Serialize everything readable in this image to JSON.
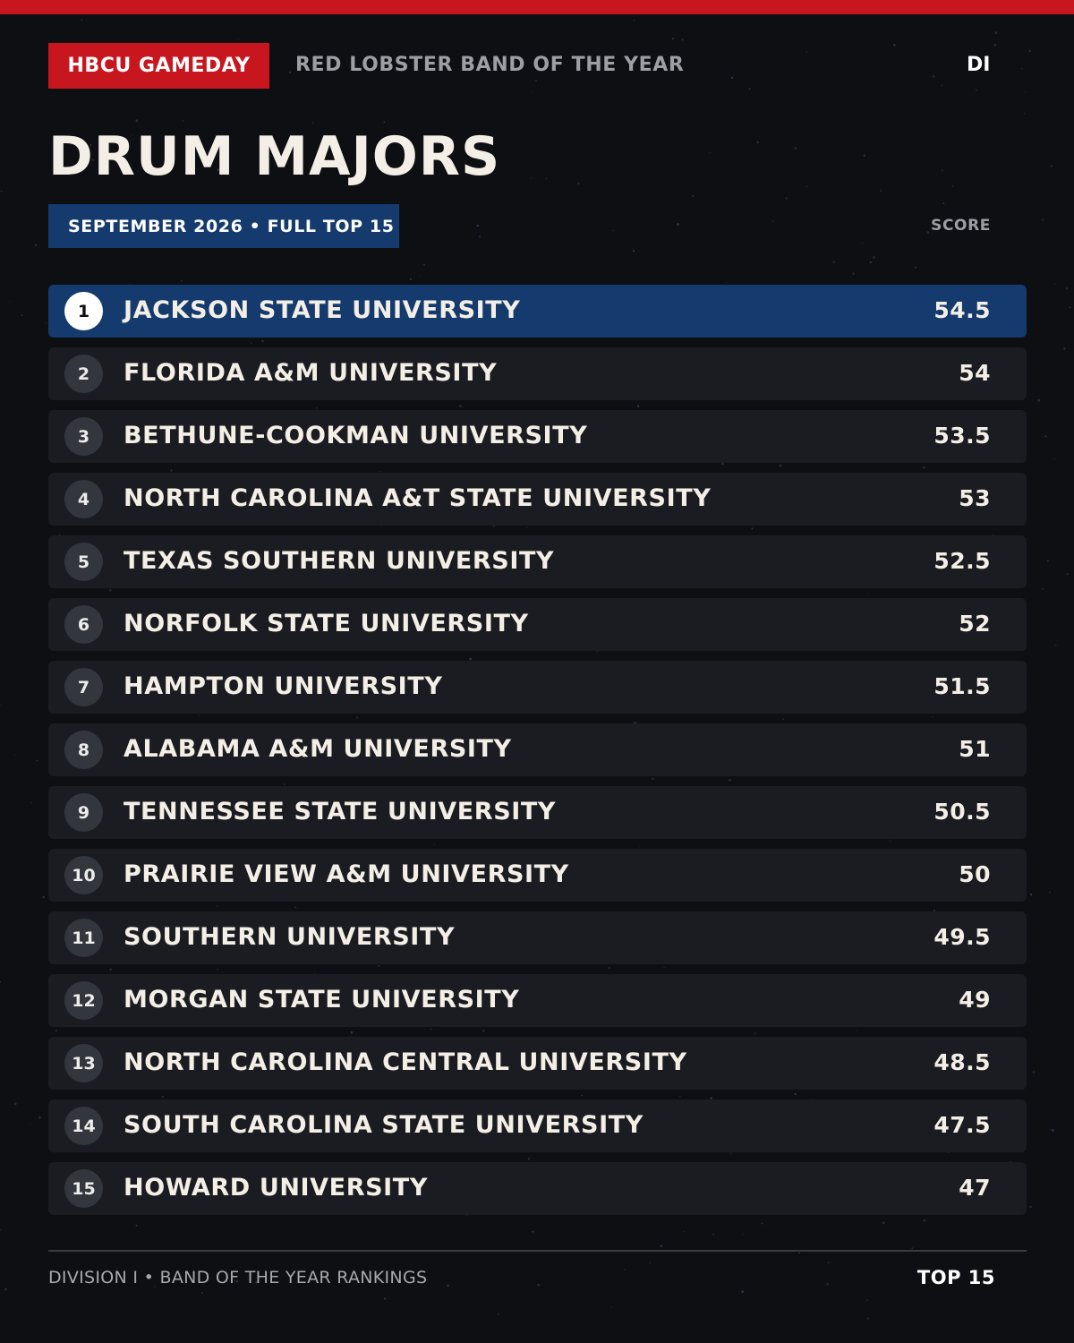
{
  "header": {
    "brand": "HBCU GAMEDAY",
    "event": "RED LOBSTER BAND OF THE YEAR",
    "division": "DI"
  },
  "title": "DRUM MAJORS",
  "subtitle": "SEPTEMBER 2026 • FULL TOP 15",
  "score_header": "SCORE",
  "rankings": [
    {
      "rank": "1",
      "school": "JACKSON STATE UNIVERSITY",
      "score": "54.5"
    },
    {
      "rank": "2",
      "school": "FLORIDA A&M UNIVERSITY",
      "score": "54"
    },
    {
      "rank": "3",
      "school": "BETHUNE-COOKMAN UNIVERSITY",
      "score": "53.5"
    },
    {
      "rank": "4",
      "school": "NORTH CAROLINA A&T STATE UNIVERSITY",
      "score": "53"
    },
    {
      "rank": "5",
      "school": "TEXAS SOUTHERN UNIVERSITY",
      "score": "52.5"
    },
    {
      "rank": "6",
      "school": "NORFOLK STATE UNIVERSITY",
      "score": "52"
    },
    {
      "rank": "7",
      "school": "HAMPTON UNIVERSITY",
      "score": "51.5"
    },
    {
      "rank": "8",
      "school": "ALABAMA A&M UNIVERSITY",
      "score": "51"
    },
    {
      "rank": "9",
      "school": "TENNESSEE STATE UNIVERSITY",
      "score": "50.5"
    },
    {
      "rank": "10",
      "school": "PRAIRIE VIEW A&M UNIVERSITY",
      "score": "50"
    },
    {
      "rank": "11",
      "school": "SOUTHERN UNIVERSITY",
      "score": "49.5"
    },
    {
      "rank": "12",
      "school": "MORGAN STATE UNIVERSITY",
      "score": "49"
    },
    {
      "rank": "13",
      "school": "NORTH CAROLINA CENTRAL UNIVERSITY",
      "score": "48.5"
    },
    {
      "rank": "14",
      "school": "SOUTH CAROLINA STATE UNIVERSITY",
      "score": "47.5"
    },
    {
      "rank": "15",
      "school": "HOWARD UNIVERSITY",
      "score": "47"
    }
  ],
  "footer": {
    "left": "DIVISION I • BAND OF THE YEAR RANKINGS",
    "right": "TOP 15"
  },
  "colors": {
    "accent_red": "#c8161f",
    "accent_blue": "#143a6e",
    "background": "#0e0f13",
    "row_background": "#1b1c21"
  }
}
